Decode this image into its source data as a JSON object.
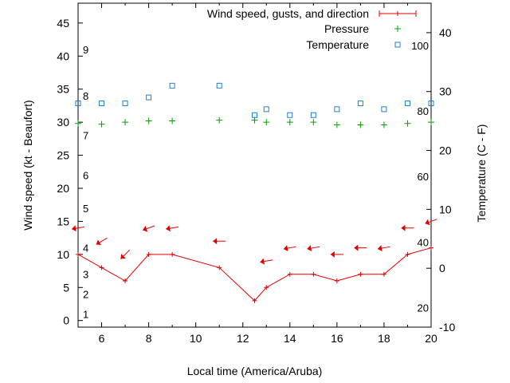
{
  "chart_data": {
    "type": "line",
    "xlabel": "Local time (America/Aruba)",
    "ylabel_left": "Wind speed (kt - Beaufort)",
    "ylabel_right": "Temperature (C - F)",
    "xlim": [
      5,
      20
    ],
    "ylim_left": [
      -1,
      48
    ],
    "ylim_right": [
      -10,
      45
    ],
    "x_ticks": [
      "6",
      "8",
      "10",
      "12",
      "14",
      "16",
      "18",
      "20"
    ],
    "y_left_ticks": [
      "0",
      "5",
      "10",
      "15",
      "20",
      "25",
      "30",
      "35",
      "40",
      "45"
    ],
    "y_right_ticks": [
      "-10",
      "0",
      "10",
      "20",
      "30",
      "40"
    ],
    "beaufort_labels": [
      {
        "text": "1",
        "kt": 1
      },
      {
        "text": "2",
        "kt": 4
      },
      {
        "text": "3",
        "kt": 7
      },
      {
        "text": "4",
        "kt": 11
      },
      {
        "text": "5",
        "kt": 17
      },
      {
        "text": "6",
        "kt": 22
      },
      {
        "text": "7",
        "kt": 28
      },
      {
        "text": "8",
        "kt": 34
      },
      {
        "text": "9",
        "kt": 41
      }
    ],
    "fahrenheit_labels": [
      {
        "text": "20",
        "temp_c": -6.7
      },
      {
        "text": "40",
        "temp_c": 4.4
      },
      {
        "text": "60",
        "temp_c": 15.6
      },
      {
        "text": "80",
        "temp_c": 26.7
      },
      {
        "text": "100",
        "temp_c": 37.8
      }
    ],
    "legend": {
      "placement": "top-right",
      "wind": "Wind speed, gusts, and direction",
      "pressure": "Pressure",
      "temperature": "Temperature"
    },
    "wind": {
      "x": [
        5,
        6,
        7,
        8,
        9,
        11,
        12.5,
        13,
        14,
        15,
        16,
        17,
        18,
        19,
        20
      ],
      "speed_kt": [
        10,
        8,
        6,
        10,
        10,
        8,
        3,
        5,
        7,
        7,
        6,
        7,
        7,
        10,
        11
      ]
    },
    "wind_direction_markers": {
      "x": [
        5,
        6,
        7,
        8,
        9,
        11,
        13,
        14,
        15,
        16,
        17,
        18,
        19,
        20
      ],
      "kt": [
        14,
        12,
        10,
        14,
        14,
        12,
        9,
        11,
        11,
        10,
        11,
        11,
        14,
        15
      ],
      "direction_deg": [
        80,
        60,
        45,
        70,
        80,
        90,
        80,
        80,
        80,
        90,
        90,
        80,
        90,
        70
      ]
    },
    "pressure": {
      "x": [
        5,
        6,
        7,
        8,
        9,
        11,
        12.5,
        13,
        14,
        15,
        16,
        17,
        18,
        19,
        20
      ],
      "y_kt": [
        29.8,
        29.7,
        30.0,
        30.2,
        30.2,
        30.3,
        30.3,
        30.0,
        30.0,
        30.0,
        29.6,
        29.6,
        29.6,
        29.8,
        30.0
      ]
    },
    "temperature": {
      "x": [
        5,
        6,
        7,
        8,
        9,
        11,
        12.5,
        13,
        14,
        15,
        16,
        17,
        18,
        19,
        20
      ],
      "temp_c": [
        28,
        28,
        28,
        29,
        31,
        31,
        26,
        27,
        26,
        26,
        27,
        28,
        27,
        28,
        28
      ]
    },
    "colors": {
      "wind": "#e00000",
      "pressure": "#00a000",
      "temperature": "#1f7fd4",
      "axis": "#000000"
    }
  }
}
